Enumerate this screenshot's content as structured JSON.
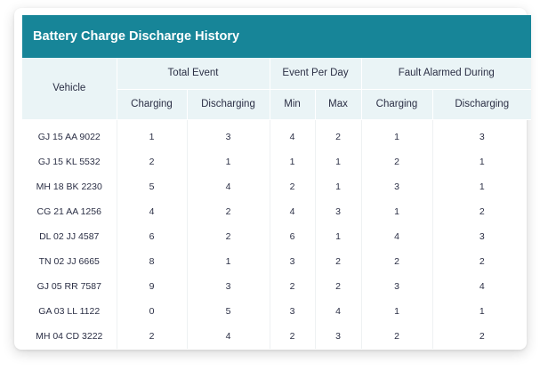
{
  "title": "Battery Charge Discharge History",
  "headers": {
    "vehicle": "Vehicle",
    "total_event": "Total Event",
    "event_per_day": "Event Per Day",
    "fault_alarmed": "Fault Alarmed During",
    "charging": "Charging",
    "discharging": "Discharging",
    "min": "Min",
    "max": "Max",
    "fault_charging": "Charging",
    "fault_discharging": "Discharging"
  },
  "rows": [
    {
      "vehicle": "GJ 15 AA 9022",
      "total_charging": "1",
      "total_discharging": "3",
      "min": "4",
      "max": "2",
      "fault_charging": "1",
      "fault_discharging": "3"
    },
    {
      "vehicle": "GJ 15 KL 5532",
      "total_charging": "2",
      "total_discharging": "1",
      "min": "1",
      "max": "1",
      "fault_charging": "2",
      "fault_discharging": "1"
    },
    {
      "vehicle": "MH 18 BK 2230",
      "total_charging": "5",
      "total_discharging": "4",
      "min": "2",
      "max": "1",
      "fault_charging": "3",
      "fault_discharging": "1"
    },
    {
      "vehicle": "CG 21 AA 1256",
      "total_charging": "4",
      "total_discharging": "2",
      "min": "4",
      "max": "3",
      "fault_charging": "1",
      "fault_discharging": "2"
    },
    {
      "vehicle": "DL 02 JJ 4587",
      "total_charging": "6",
      "total_discharging": "2",
      "min": "6",
      "max": "1",
      "fault_charging": "4",
      "fault_discharging": "3"
    },
    {
      "vehicle": "TN 02 JJ 6665",
      "total_charging": "8",
      "total_discharging": "1",
      "min": "3",
      "max": "2",
      "fault_charging": "2",
      "fault_discharging": "2"
    },
    {
      "vehicle": "GJ 05 RR 7587",
      "total_charging": "9",
      "total_discharging": "3",
      "min": "2",
      "max": "2",
      "fault_charging": "3",
      "fault_discharging": "4"
    },
    {
      "vehicle": "GA 03 LL 1122",
      "total_charging": "0",
      "total_discharging": "5",
      "min": "3",
      "max": "4",
      "fault_charging": "1",
      "fault_discharging": "1"
    },
    {
      "vehicle": "MH 04 CD 3222",
      "total_charging": "2",
      "total_discharging": "4",
      "min": "2",
      "max": "3",
      "fault_charging": "2",
      "fault_discharging": "2"
    }
  ]
}
